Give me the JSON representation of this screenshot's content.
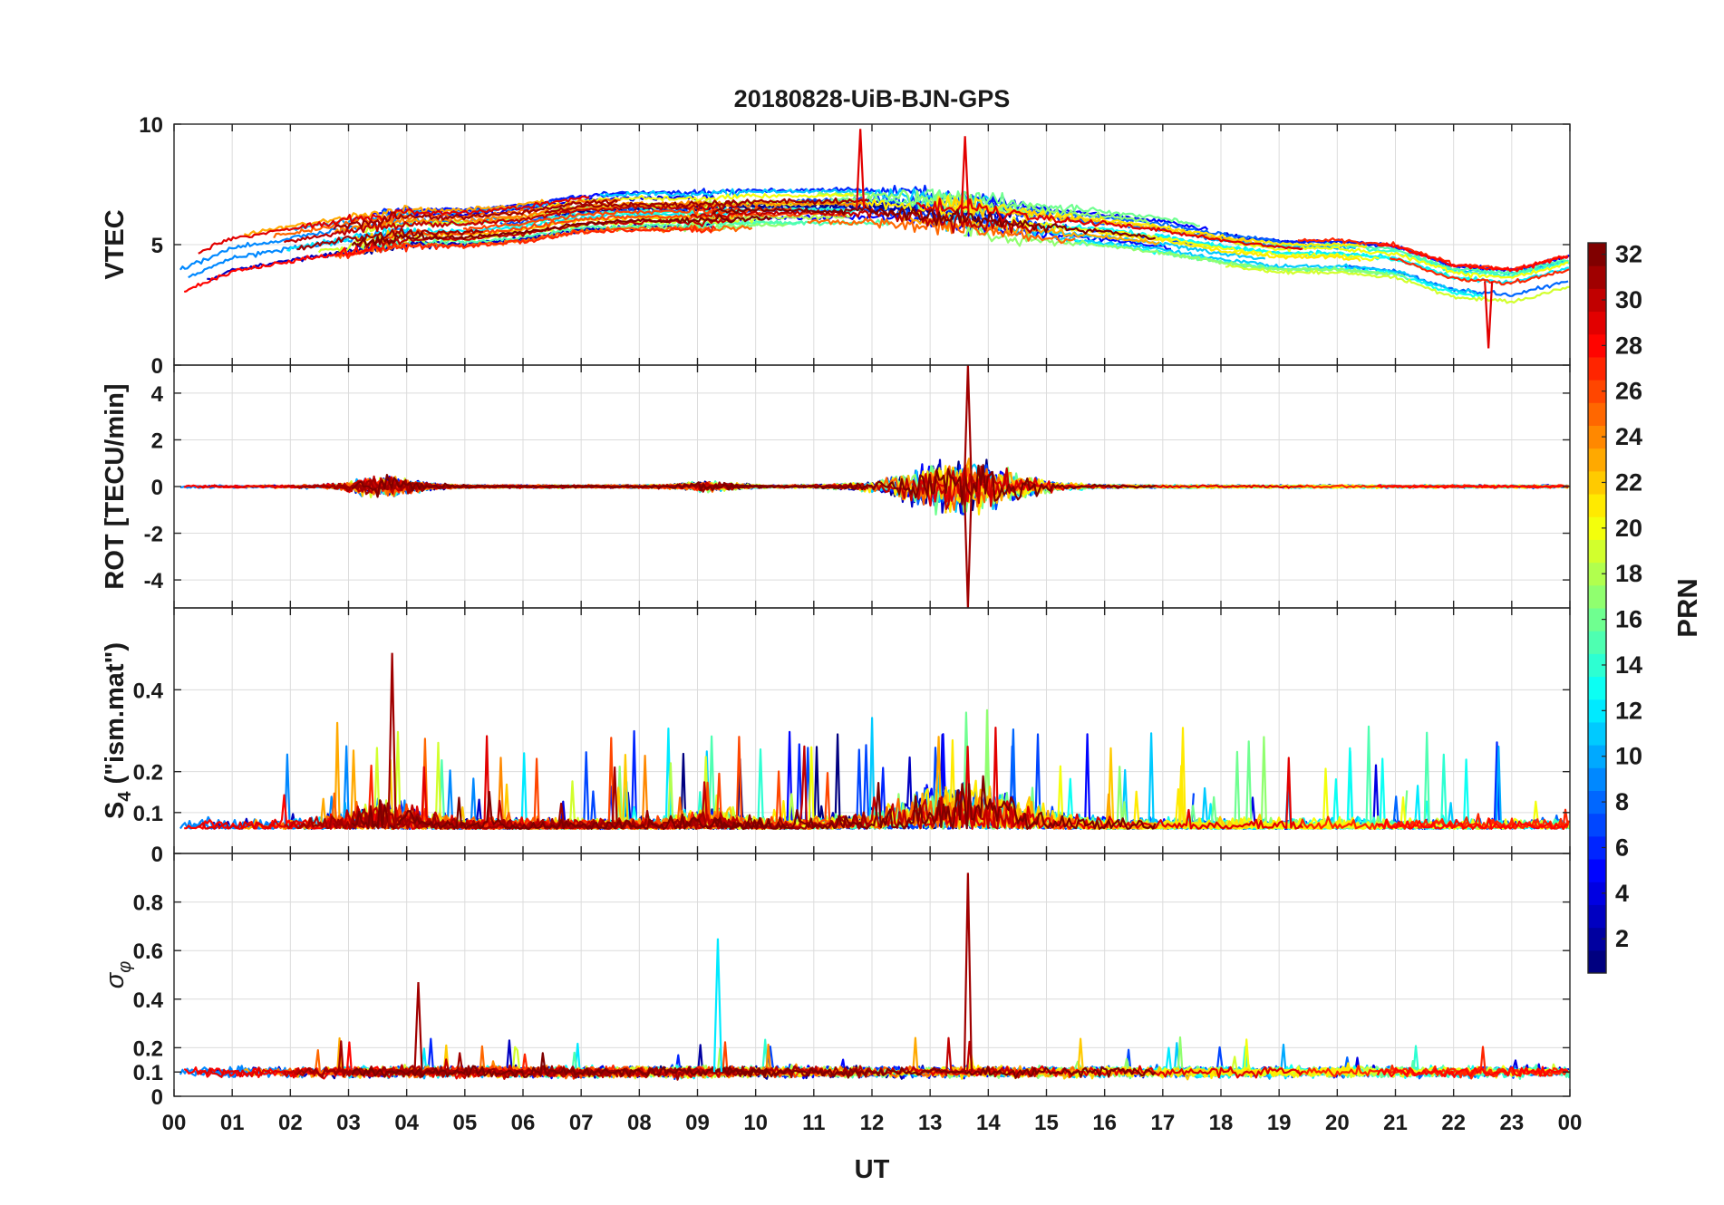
{
  "chart_data": {
    "type": "line",
    "title": "20180828-UiB-BJN-GPS",
    "xlabel": "UT",
    "x_range": [
      0,
      24
    ],
    "x_tick_labels": [
      "00",
      "01",
      "02",
      "03",
      "04",
      "05",
      "06",
      "07",
      "08",
      "09",
      "10",
      "11",
      "12",
      "13",
      "14",
      "15",
      "16",
      "17",
      "18",
      "19",
      "20",
      "21",
      "22",
      "23",
      "00"
    ],
    "grid": true,
    "series_count": 32,
    "series_note": "one line per GPS satellite PRN, coloured by PRN",
    "panels": [
      {
        "id": "vtec",
        "ylabel": "VTEC",
        "ylim": [
          0,
          10
        ],
        "yticks": [
          0,
          5,
          10
        ],
        "ytick_labels": [
          "0",
          "5",
          "10"
        ],
        "baseline": [
          [
            0,
            3.6
          ],
          [
            1,
            4.6
          ],
          [
            2,
            5.0
          ],
          [
            3,
            5.4
          ],
          [
            4,
            5.7
          ],
          [
            5,
            5.7
          ],
          [
            6,
            5.9
          ],
          [
            7,
            6.3
          ],
          [
            8,
            6.4
          ],
          [
            9,
            6.4
          ],
          [
            10,
            6.5
          ],
          [
            11,
            6.5
          ],
          [
            12,
            6.5
          ],
          [
            13,
            6.3
          ],
          [
            14,
            6.1
          ],
          [
            15,
            5.8
          ],
          [
            16,
            5.6
          ],
          [
            17,
            5.3
          ],
          [
            18,
            4.9
          ],
          [
            19,
            4.6
          ],
          [
            20,
            4.6
          ],
          [
            21,
            4.4
          ],
          [
            22,
            3.6
          ],
          [
            23,
            3.4
          ],
          [
            24,
            4.0
          ]
        ],
        "features": [
          {
            "x": 11.8,
            "y_max": 9.8,
            "label": "peak"
          },
          {
            "x": 13.6,
            "y_max": 9.5,
            "label": "peak"
          },
          {
            "x": 22.6,
            "y_min": 0.7,
            "label": "dip"
          }
        ]
      },
      {
        "id": "rot",
        "ylabel": "ROT [TECU/min]",
        "ylim": [
          -5.2,
          5.2
        ],
        "yticks": [
          -4,
          -2,
          0,
          2,
          4
        ],
        "ytick_labels": [
          "-4",
          "-2",
          "0",
          "2",
          "4"
        ],
        "features": [
          {
            "x": 13.65,
            "y_max": 5.2,
            "y_min": -5.2,
            "label": "strong fluctuation"
          }
        ]
      },
      {
        "id": "s4",
        "ylabel": "S4 (\"ism.mat\")",
        "ylabel_main": "S",
        "ylabel_sub": "4",
        "ylabel_rest": " (\"ism.mat\")",
        "ylim": [
          0,
          0.6
        ],
        "yticks": [
          0,
          0.1,
          0.2,
          0.4
        ],
        "ytick_labels": [
          "0",
          "0.1",
          "0.2",
          "0.4"
        ],
        "features": [
          {
            "x": 3.75,
            "y_max": 0.49,
            "label": "peak"
          }
        ]
      },
      {
        "id": "sigma",
        "ylabel": "σ φ",
        "ylabel_main": "σ",
        "ylabel_sub": "φ",
        "ylim": [
          0,
          1.0
        ],
        "yticks": [
          0,
          0.1,
          0.2,
          0.4,
          0.6,
          0.8
        ],
        "ytick_labels": [
          "0",
          "0.1",
          "0.2",
          "0.4",
          "0.6",
          "0.8"
        ],
        "features": [
          {
            "x": 13.65,
            "y_max": 0.92,
            "label": "peak"
          },
          {
            "x": 9.35,
            "y_max": 0.65,
            "label": "peak"
          },
          {
            "x": 4.2,
            "y_max": 0.47,
            "label": "peak"
          }
        ]
      }
    ],
    "colorbar": {
      "label": "PRN",
      "range": [
        1,
        32
      ],
      "ticks": [
        2,
        4,
        6,
        8,
        10,
        12,
        14,
        16,
        18,
        20,
        22,
        24,
        26,
        28,
        30,
        32
      ],
      "tick_labels": [
        "2",
        "4",
        "6",
        "8",
        "10",
        "12",
        "14",
        "16",
        "18",
        "20",
        "22",
        "24",
        "26",
        "28",
        "30",
        "32"
      ],
      "colormap": "jet",
      "colors": [
        "#00008f",
        "#0000ff",
        "#00ffff",
        "#ffff00",
        "#ff0000",
        "#800000"
      ]
    }
  }
}
